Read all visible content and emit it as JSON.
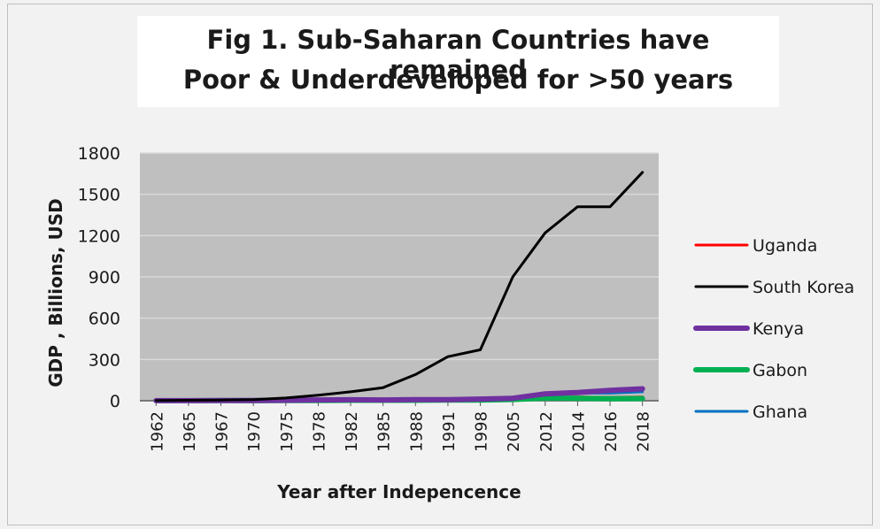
{
  "chart_data": {
    "type": "line",
    "title_lines": [
      "Fig 1. Sub-Saharan Countries have remained",
      "Poor & Underdeveloped for >50 years"
    ],
    "xlabel": "Year after Indepencence",
    "ylabel": "GDP , Billions, USD",
    "categories": [
      "1962",
      "1965",
      "1967",
      "1970",
      "1975",
      "1978",
      "1982",
      "1985",
      "1988",
      "1991",
      "1998",
      "2005",
      "2012",
      "2014",
      "2016",
      "2018"
    ],
    "ylim": [
      0,
      1800
    ],
    "yticks": [
      0,
      300,
      600,
      900,
      1200,
      1500,
      1800
    ],
    "grid": true,
    "legend_position": "right",
    "plot_background": "#bfbfbf",
    "series": [
      {
        "name": "Uganda",
        "color": "#ff0000",
        "width": 3,
        "values": [
          0.5,
          0.6,
          0.7,
          0.8,
          1,
          2,
          3,
          4,
          5,
          4,
          6,
          8,
          24,
          27,
          24,
          27
        ]
      },
      {
        "name": "South Korea",
        "color": "#000000",
        "width": 3,
        "values": [
          2,
          3,
          5,
          8,
          20,
          40,
          65,
          95,
          190,
          320,
          370,
          900,
          1220,
          1410,
          1410,
          1660
        ]
      },
      {
        "name": "Kenya",
        "color": "#7030a0",
        "width": 6,
        "values": [
          0.7,
          0.9,
          1,
          1.5,
          3,
          6,
          7,
          6,
          8,
          8,
          12,
          18,
          50,
          60,
          75,
          87
        ]
      },
      {
        "name": "Gabon",
        "color": "#00b050",
        "width": 6,
        "values": [
          0.2,
          0.3,
          0.4,
          0.5,
          1,
          2,
          3,
          3,
          3,
          5,
          5,
          9,
          19,
          18,
          15,
          16
        ]
      },
      {
        "name": "Ghana",
        "color": "#0070c0",
        "width": 3,
        "values": [
          1,
          1.2,
          1.3,
          1.5,
          2,
          3,
          4,
          4,
          5,
          6,
          7,
          10,
          42,
          56,
          55,
          65
        ]
      }
    ]
  }
}
